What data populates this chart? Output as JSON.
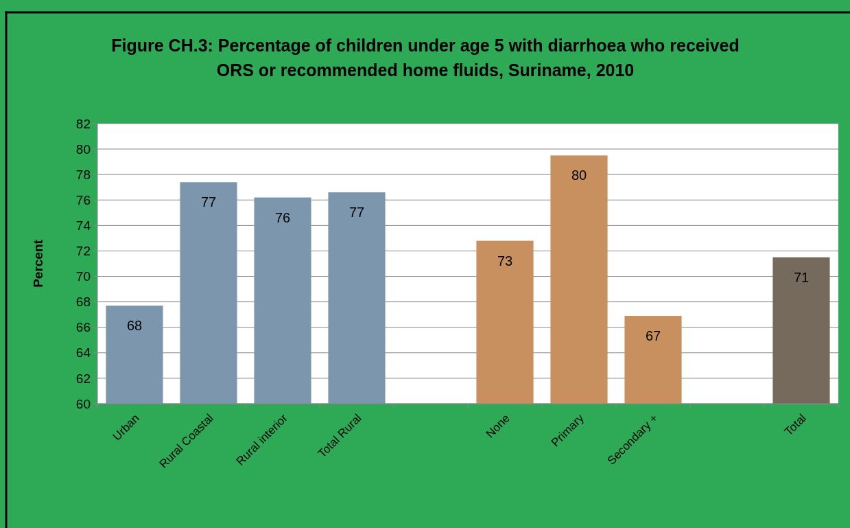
{
  "chart_data": {
    "type": "bar",
    "title": "Figure CH.3: Percentage of children under age 5 with diarrhoea who received ORS or recommended home fluids, Suriname, 2010",
    "ylabel": "Percent",
    "categories": [
      "Urban",
      "Rural Coastal",
      "Rural interior",
      "Total Rural",
      null,
      "None",
      "Primary",
      "Secondary +",
      null,
      "Total"
    ],
    "values": [
      67.7,
      77.4,
      76.2,
      76.6,
      null,
      72.8,
      79.5,
      66.9,
      null,
      71.5
    ],
    "value_labels": [
      "68",
      "77",
      "76",
      "77",
      null,
      "73",
      "80",
      "67",
      null,
      "71"
    ],
    "colors": [
      "#7b96ad",
      "#7b96ad",
      "#7b96ad",
      "#7b96ad",
      null,
      "#c9905f",
      "#c9905f",
      "#c9905f",
      null,
      "#766a5c"
    ],
    "ylim": [
      60,
      82
    ],
    "yticks": [
      60,
      62,
      64,
      66,
      68,
      70,
      72,
      74,
      76,
      78,
      80,
      82
    ],
    "grid": "y"
  }
}
